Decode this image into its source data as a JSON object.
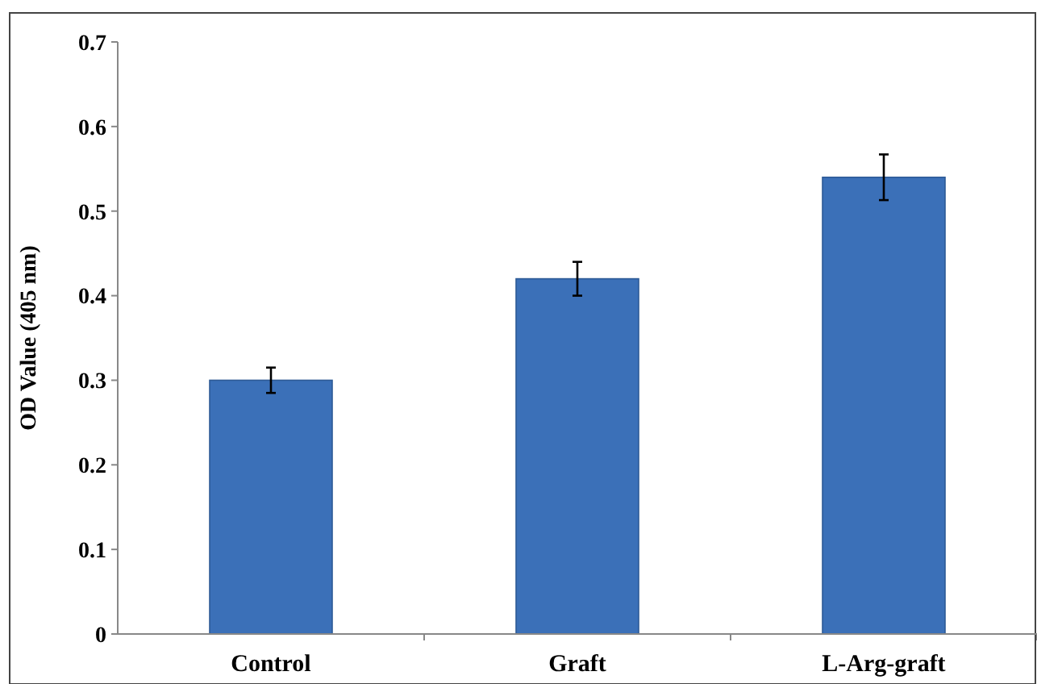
{
  "chart_data": {
    "type": "bar",
    "ylabel": "OD Value (405 nm)",
    "categories": [
      "Control",
      "Graft",
      "L-Arg-graft"
    ],
    "values": [
      0.3,
      0.42,
      0.54
    ],
    "errors": [
      0.015,
      0.02,
      0.027
    ],
    "color": "#3b70b8",
    "ylim": [
      0,
      0.7
    ],
    "yticks": [
      0,
      0.1,
      0.2,
      0.3,
      0.4,
      0.5,
      0.6,
      0.7
    ],
    "grid": false
  }
}
